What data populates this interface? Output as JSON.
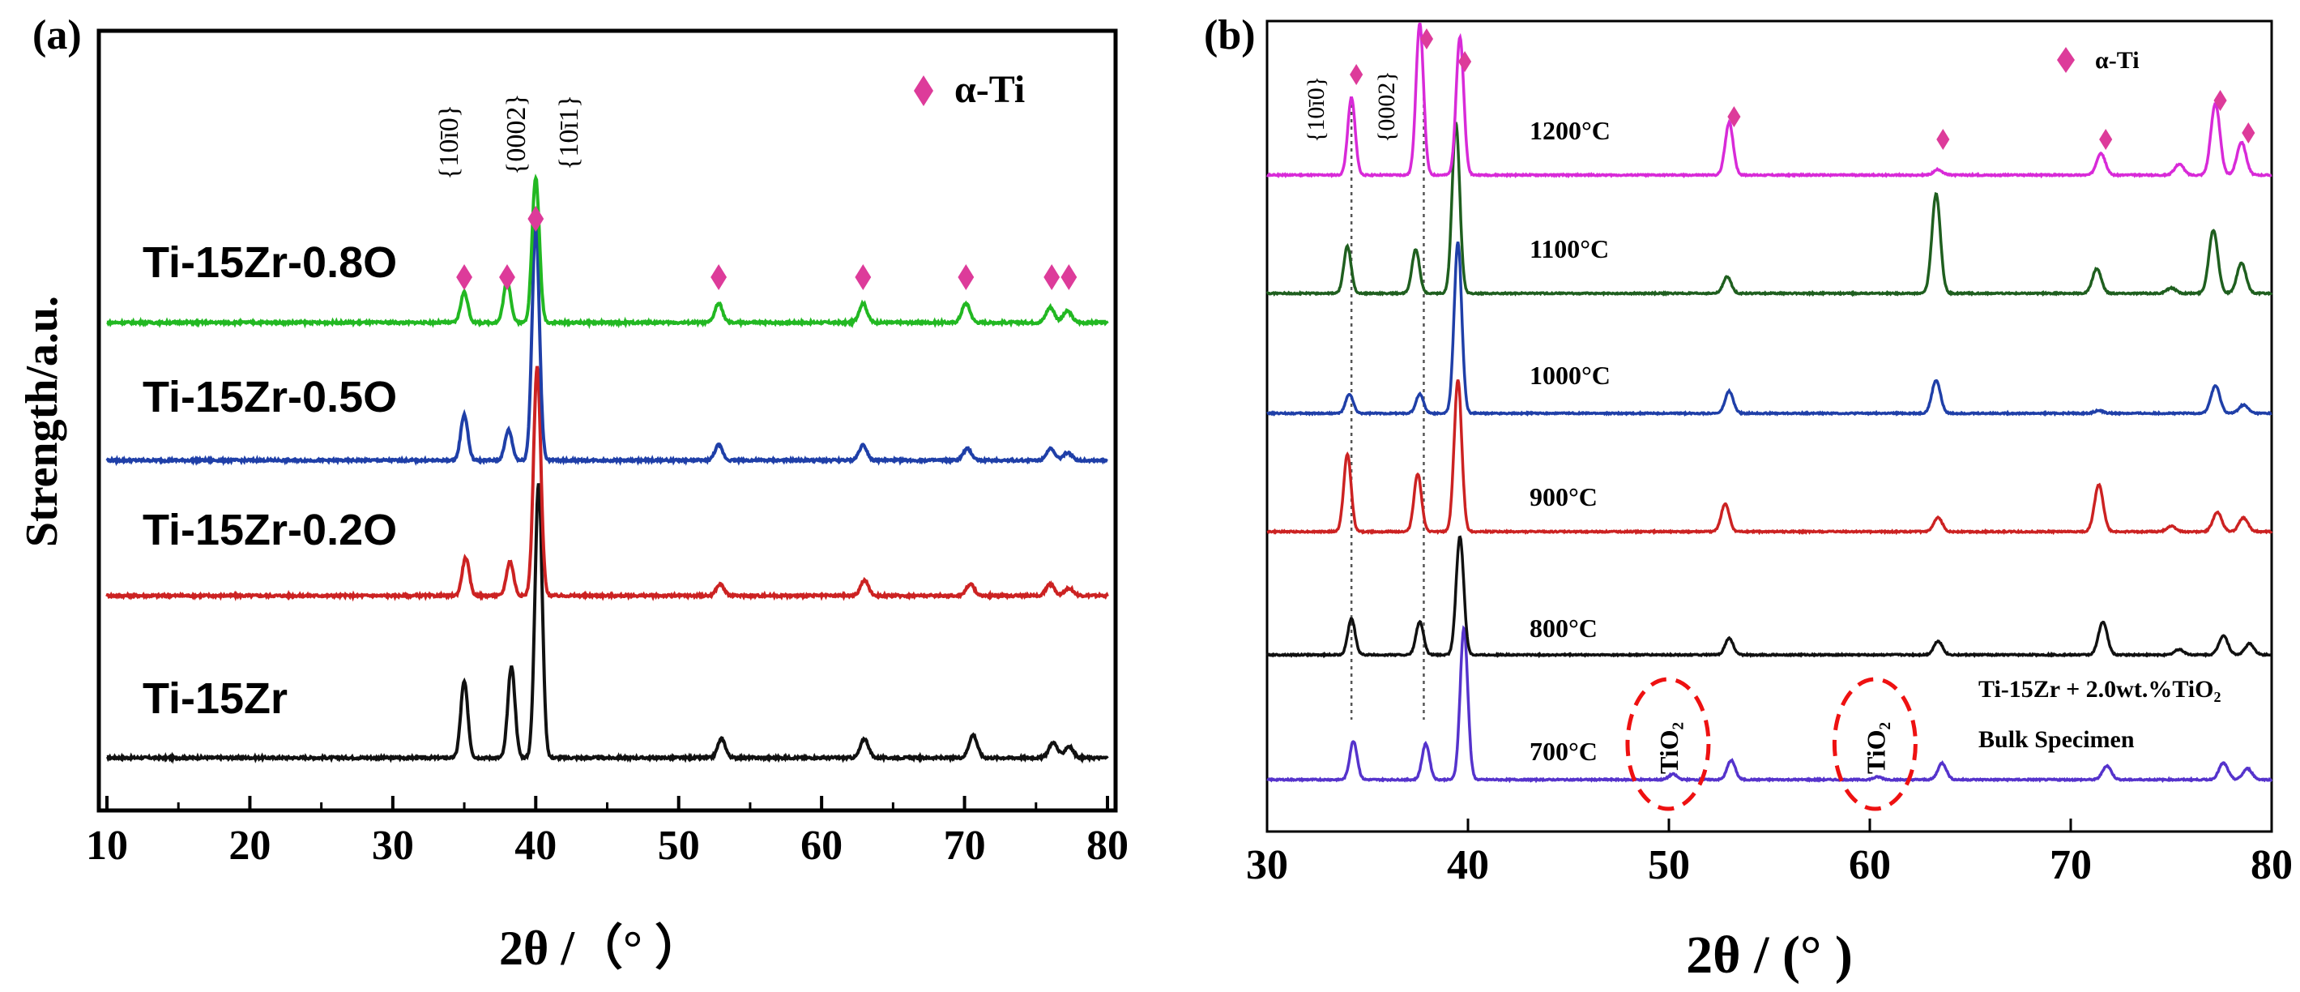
{
  "chart_data": [
    {
      "panel_label": "(a)",
      "type": "line",
      "title": "",
      "xlabel": "2θ /（°  ）",
      "ylabel": "Strength/a.u.",
      "xlim": [
        10,
        80
      ],
      "xticks": [
        10,
        20,
        30,
        40,
        50,
        60,
        70,
        80
      ],
      "legend": {
        "marker": "◆",
        "label": "α-Ti",
        "placement": "top-right",
        "color": "#dd3b9a"
      },
      "plane_labels": [
        {
          "text": "{10ī0}",
          "x": 35.0
        },
        {
          "text": "{0002}",
          "x": 38.1
        },
        {
          "text": "{10ī1}",
          "x": 40.2
        }
      ],
      "series": [
        {
          "name": "Ti-15Zr",
          "color": "#111111",
          "baseline": 0.0,
          "peaks": [
            [
              35.0,
              0.2
            ],
            [
              38.3,
              0.24
            ],
            [
              40.2,
              0.72
            ],
            [
              53.0,
              0.05
            ],
            [
              63.0,
              0.05
            ],
            [
              70.6,
              0.06
            ],
            [
              76.2,
              0.04
            ],
            [
              77.3,
              0.03
            ]
          ]
        },
        {
          "name": "Ti-15Zr-0.2O",
          "color": "#cc2222",
          "baseline": 1.0,
          "peaks": [
            [
              35.1,
              0.1
            ],
            [
              38.2,
              0.09
            ],
            [
              40.1,
              0.6
            ],
            [
              52.9,
              0.03
            ],
            [
              63.0,
              0.04
            ],
            [
              70.4,
              0.03
            ],
            [
              76.0,
              0.03
            ],
            [
              77.3,
              0.02
            ]
          ]
        },
        {
          "name": "Ti-15Zr-0.5O",
          "color": "#1f3fa8",
          "baseline": 2.0,
          "peaks": [
            [
              35.0,
              0.12
            ],
            [
              38.1,
              0.08
            ],
            [
              40.0,
              0.62
            ],
            [
              52.8,
              0.04
            ],
            [
              62.9,
              0.04
            ],
            [
              70.2,
              0.03
            ],
            [
              76.0,
              0.03
            ],
            [
              77.2,
              0.02
            ]
          ]
        },
        {
          "name": "Ti-15Zr-0.8O",
          "color": "#22b822",
          "baseline": 3.0,
          "markers": [
            35.0,
            38.0,
            40.0,
            52.8,
            62.9,
            70.1,
            76.1,
            77.3
          ],
          "peaks": [
            [
              35.0,
              0.08
            ],
            [
              38.0,
              0.11
            ],
            [
              40.0,
              0.38
            ],
            [
              52.8,
              0.05
            ],
            [
              62.9,
              0.05
            ],
            [
              70.1,
              0.05
            ],
            [
              76.0,
              0.04
            ],
            [
              77.2,
              0.03
            ]
          ]
        }
      ]
    },
    {
      "panel_label": "(b)",
      "type": "line",
      "title": "",
      "xlabel": "2θ / (°  )",
      "ylabel": "",
      "xlim": [
        30,
        80
      ],
      "xticks": [
        30,
        40,
        50,
        60,
        70,
        80
      ],
      "legend": {
        "marker": "◆",
        "label": "α-Ti",
        "placement": "top-right",
        "color": "#dd3b9a"
      },
      "plane_labels": [
        {
          "text": "{10ī0}",
          "x": 34.2
        },
        {
          "text": "{0002}",
          "x": 37.7
        }
      ],
      "annotations": {
        "specimen_line1": "Ti-15Zr + 2.0wt.%TiO₂",
        "specimen_line2": "Bulk Specimen",
        "tio2_label": "TiO₂",
        "tio2_positions": [
          50.2,
          60.5
        ],
        "dashed_reference_lines": [
          34.2,
          37.8
        ]
      },
      "series": [
        {
          "name": "700°C",
          "color": "#5533cc",
          "baseline": 0.0,
          "peaks": [
            [
              34.3,
              0.14
            ],
            [
              37.9,
              0.13
            ],
            [
              39.8,
              0.55
            ],
            [
              50.2,
              0.02
            ],
            [
              53.1,
              0.07
            ],
            [
              60.4,
              0.01
            ],
            [
              63.6,
              0.06
            ],
            [
              71.8,
              0.05
            ],
            [
              77.6,
              0.06
            ],
            [
              78.8,
              0.04
            ]
          ]
        },
        {
          "name": "800°C",
          "color": "#111111",
          "baseline": 1.0,
          "peaks": [
            [
              34.2,
              0.13
            ],
            [
              37.6,
              0.12
            ],
            [
              39.6,
              0.43
            ],
            [
              53.0,
              0.06
            ],
            [
              63.4,
              0.05
            ],
            [
              71.6,
              0.12
            ],
            [
              75.4,
              0.02
            ],
            [
              77.6,
              0.07
            ],
            [
              78.9,
              0.04
            ]
          ]
        },
        {
          "name": "900°C",
          "color": "#cc2222",
          "baseline": 2.0,
          "peaks": [
            [
              34.0,
              0.28
            ],
            [
              37.5,
              0.21
            ],
            [
              39.5,
              0.55
            ],
            [
              52.8,
              0.1
            ],
            [
              63.4,
              0.05
            ],
            [
              71.4,
              0.17
            ],
            [
              75.0,
              0.02
            ],
            [
              77.3,
              0.07
            ],
            [
              78.6,
              0.05
            ]
          ]
        },
        {
          "name": "1000°C",
          "color": "#1f3fa8",
          "baseline": 3.0,
          "peaks": [
            [
              34.1,
              0.07
            ],
            [
              37.6,
              0.07
            ],
            [
              39.5,
              0.62
            ],
            [
              53.0,
              0.08
            ],
            [
              63.3,
              0.12
            ],
            [
              71.4,
              0.01
            ],
            [
              77.2,
              0.1
            ],
            [
              78.6,
              0.03
            ]
          ]
        },
        {
          "name": "1100°C",
          "color": "#1f5f1f",
          "baseline": 4.0,
          "peaks": [
            [
              34.0,
              0.17
            ],
            [
              37.4,
              0.16
            ],
            [
              39.4,
              0.62
            ],
            [
              52.9,
              0.06
            ],
            [
              63.3,
              0.36
            ],
            [
              71.3,
              0.09
            ],
            [
              75.0,
              0.02
            ],
            [
              77.1,
              0.23
            ],
            [
              78.5,
              0.11
            ]
          ]
        },
        {
          "name": "1200°C",
          "color": "#d82ad8",
          "baseline": 5.0,
          "markers": [
            34.2,
            37.7,
            39.6,
            53.0,
            63.4,
            71.5,
            77.2,
            78.6
          ],
          "peaks": [
            [
              34.2,
              0.28
            ],
            [
              37.6,
              0.55
            ],
            [
              39.6,
              0.5
            ],
            [
              53.0,
              0.19
            ],
            [
              63.4,
              0.02
            ],
            [
              71.5,
              0.08
            ],
            [
              75.4,
              0.04
            ],
            [
              77.2,
              0.26
            ],
            [
              78.5,
              0.12
            ]
          ]
        }
      ]
    }
  ]
}
